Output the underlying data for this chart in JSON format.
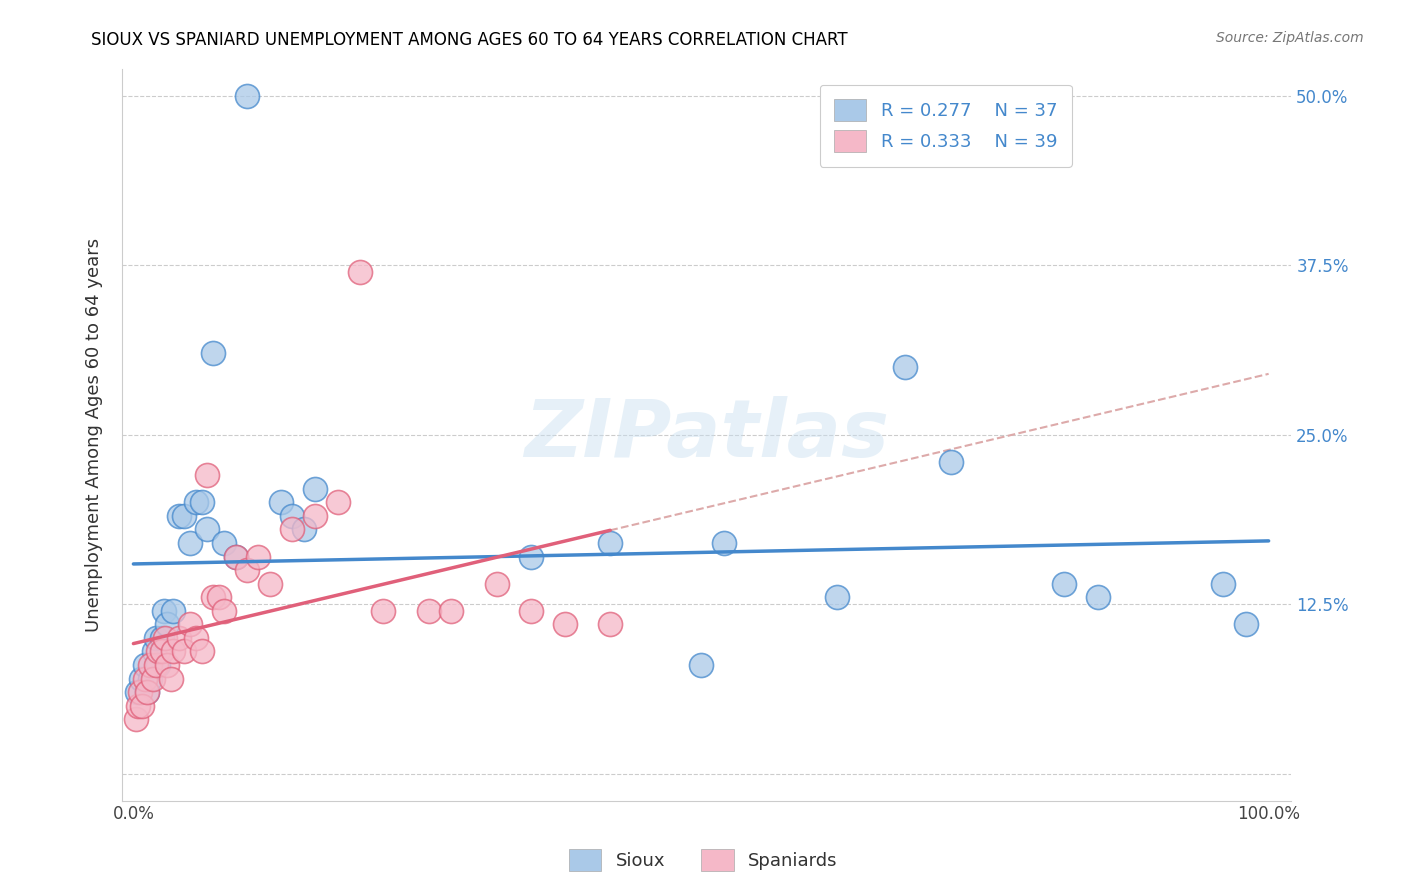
{
  "title": "SIOUX VS SPANIARD UNEMPLOYMENT AMONG AGES 60 TO 64 YEARS CORRELATION CHART",
  "source": "Source: ZipAtlas.com",
  "ylabel": "Unemployment Among Ages 60 to 64 years",
  "legend_sioux": "Sioux",
  "legend_spaniards": "Spaniards",
  "r_sioux": 0.277,
  "n_sioux": 37,
  "r_spaniards": 0.333,
  "n_spaniards": 39,
  "xlim": [
    -0.01,
    1.02
  ],
  "ylim": [
    -0.02,
    0.52
  ],
  "xticks": [
    0.0,
    0.25,
    0.5,
    0.75,
    1.0
  ],
  "xtick_labels": [
    "0.0%",
    "",
    "",
    "",
    "100.0%"
  ],
  "yticks": [
    0.0,
    0.125,
    0.25,
    0.375,
    0.5
  ],
  "ytick_labels_left": [
    "",
    "",
    "",
    "",
    ""
  ],
  "ytick_labels_right": [
    "",
    "12.5%",
    "25.0%",
    "37.5%",
    "50.0%"
  ],
  "color_sioux": "#aac9e8",
  "color_spaniards": "#f5b8c8",
  "color_sioux_line": "#4488cc",
  "color_spaniards_line": "#e0607a",
  "color_dashed": "#ddaaaa",
  "watermark": "ZIPatlas",
  "sioux_x": [
    0.003,
    0.007,
    0.01,
    0.012,
    0.015,
    0.018,
    0.02,
    0.022,
    0.025,
    0.027,
    0.03,
    0.035,
    0.04,
    0.045,
    0.05,
    0.055,
    0.06,
    0.065,
    0.07,
    0.08,
    0.09,
    0.1,
    0.13,
    0.14,
    0.15,
    0.16,
    0.35,
    0.42,
    0.5,
    0.52,
    0.62,
    0.68,
    0.72,
    0.82,
    0.85,
    0.96,
    0.98
  ],
  "sioux_y": [
    0.06,
    0.07,
    0.08,
    0.06,
    0.07,
    0.09,
    0.1,
    0.08,
    0.1,
    0.12,
    0.11,
    0.12,
    0.19,
    0.19,
    0.17,
    0.2,
    0.2,
    0.18,
    0.31,
    0.17,
    0.16,
    0.5,
    0.2,
    0.19,
    0.18,
    0.21,
    0.16,
    0.17,
    0.08,
    0.17,
    0.13,
    0.3,
    0.23,
    0.14,
    0.13,
    0.14,
    0.11
  ],
  "spaniards_x": [
    0.002,
    0.004,
    0.006,
    0.008,
    0.01,
    0.012,
    0.015,
    0.017,
    0.02,
    0.022,
    0.025,
    0.028,
    0.03,
    0.033,
    0.035,
    0.04,
    0.045,
    0.05,
    0.055,
    0.06,
    0.065,
    0.07,
    0.075,
    0.08,
    0.09,
    0.1,
    0.11,
    0.12,
    0.14,
    0.16,
    0.18,
    0.2,
    0.22,
    0.26,
    0.28,
    0.32,
    0.35,
    0.38,
    0.42
  ],
  "spaniards_y": [
    0.04,
    0.05,
    0.06,
    0.05,
    0.07,
    0.06,
    0.08,
    0.07,
    0.08,
    0.09,
    0.09,
    0.1,
    0.08,
    0.07,
    0.09,
    0.1,
    0.09,
    0.11,
    0.1,
    0.09,
    0.22,
    0.13,
    0.13,
    0.12,
    0.16,
    0.15,
    0.16,
    0.14,
    0.18,
    0.19,
    0.2,
    0.37,
    0.12,
    0.12,
    0.12,
    0.14,
    0.12,
    0.11,
    0.11
  ]
}
